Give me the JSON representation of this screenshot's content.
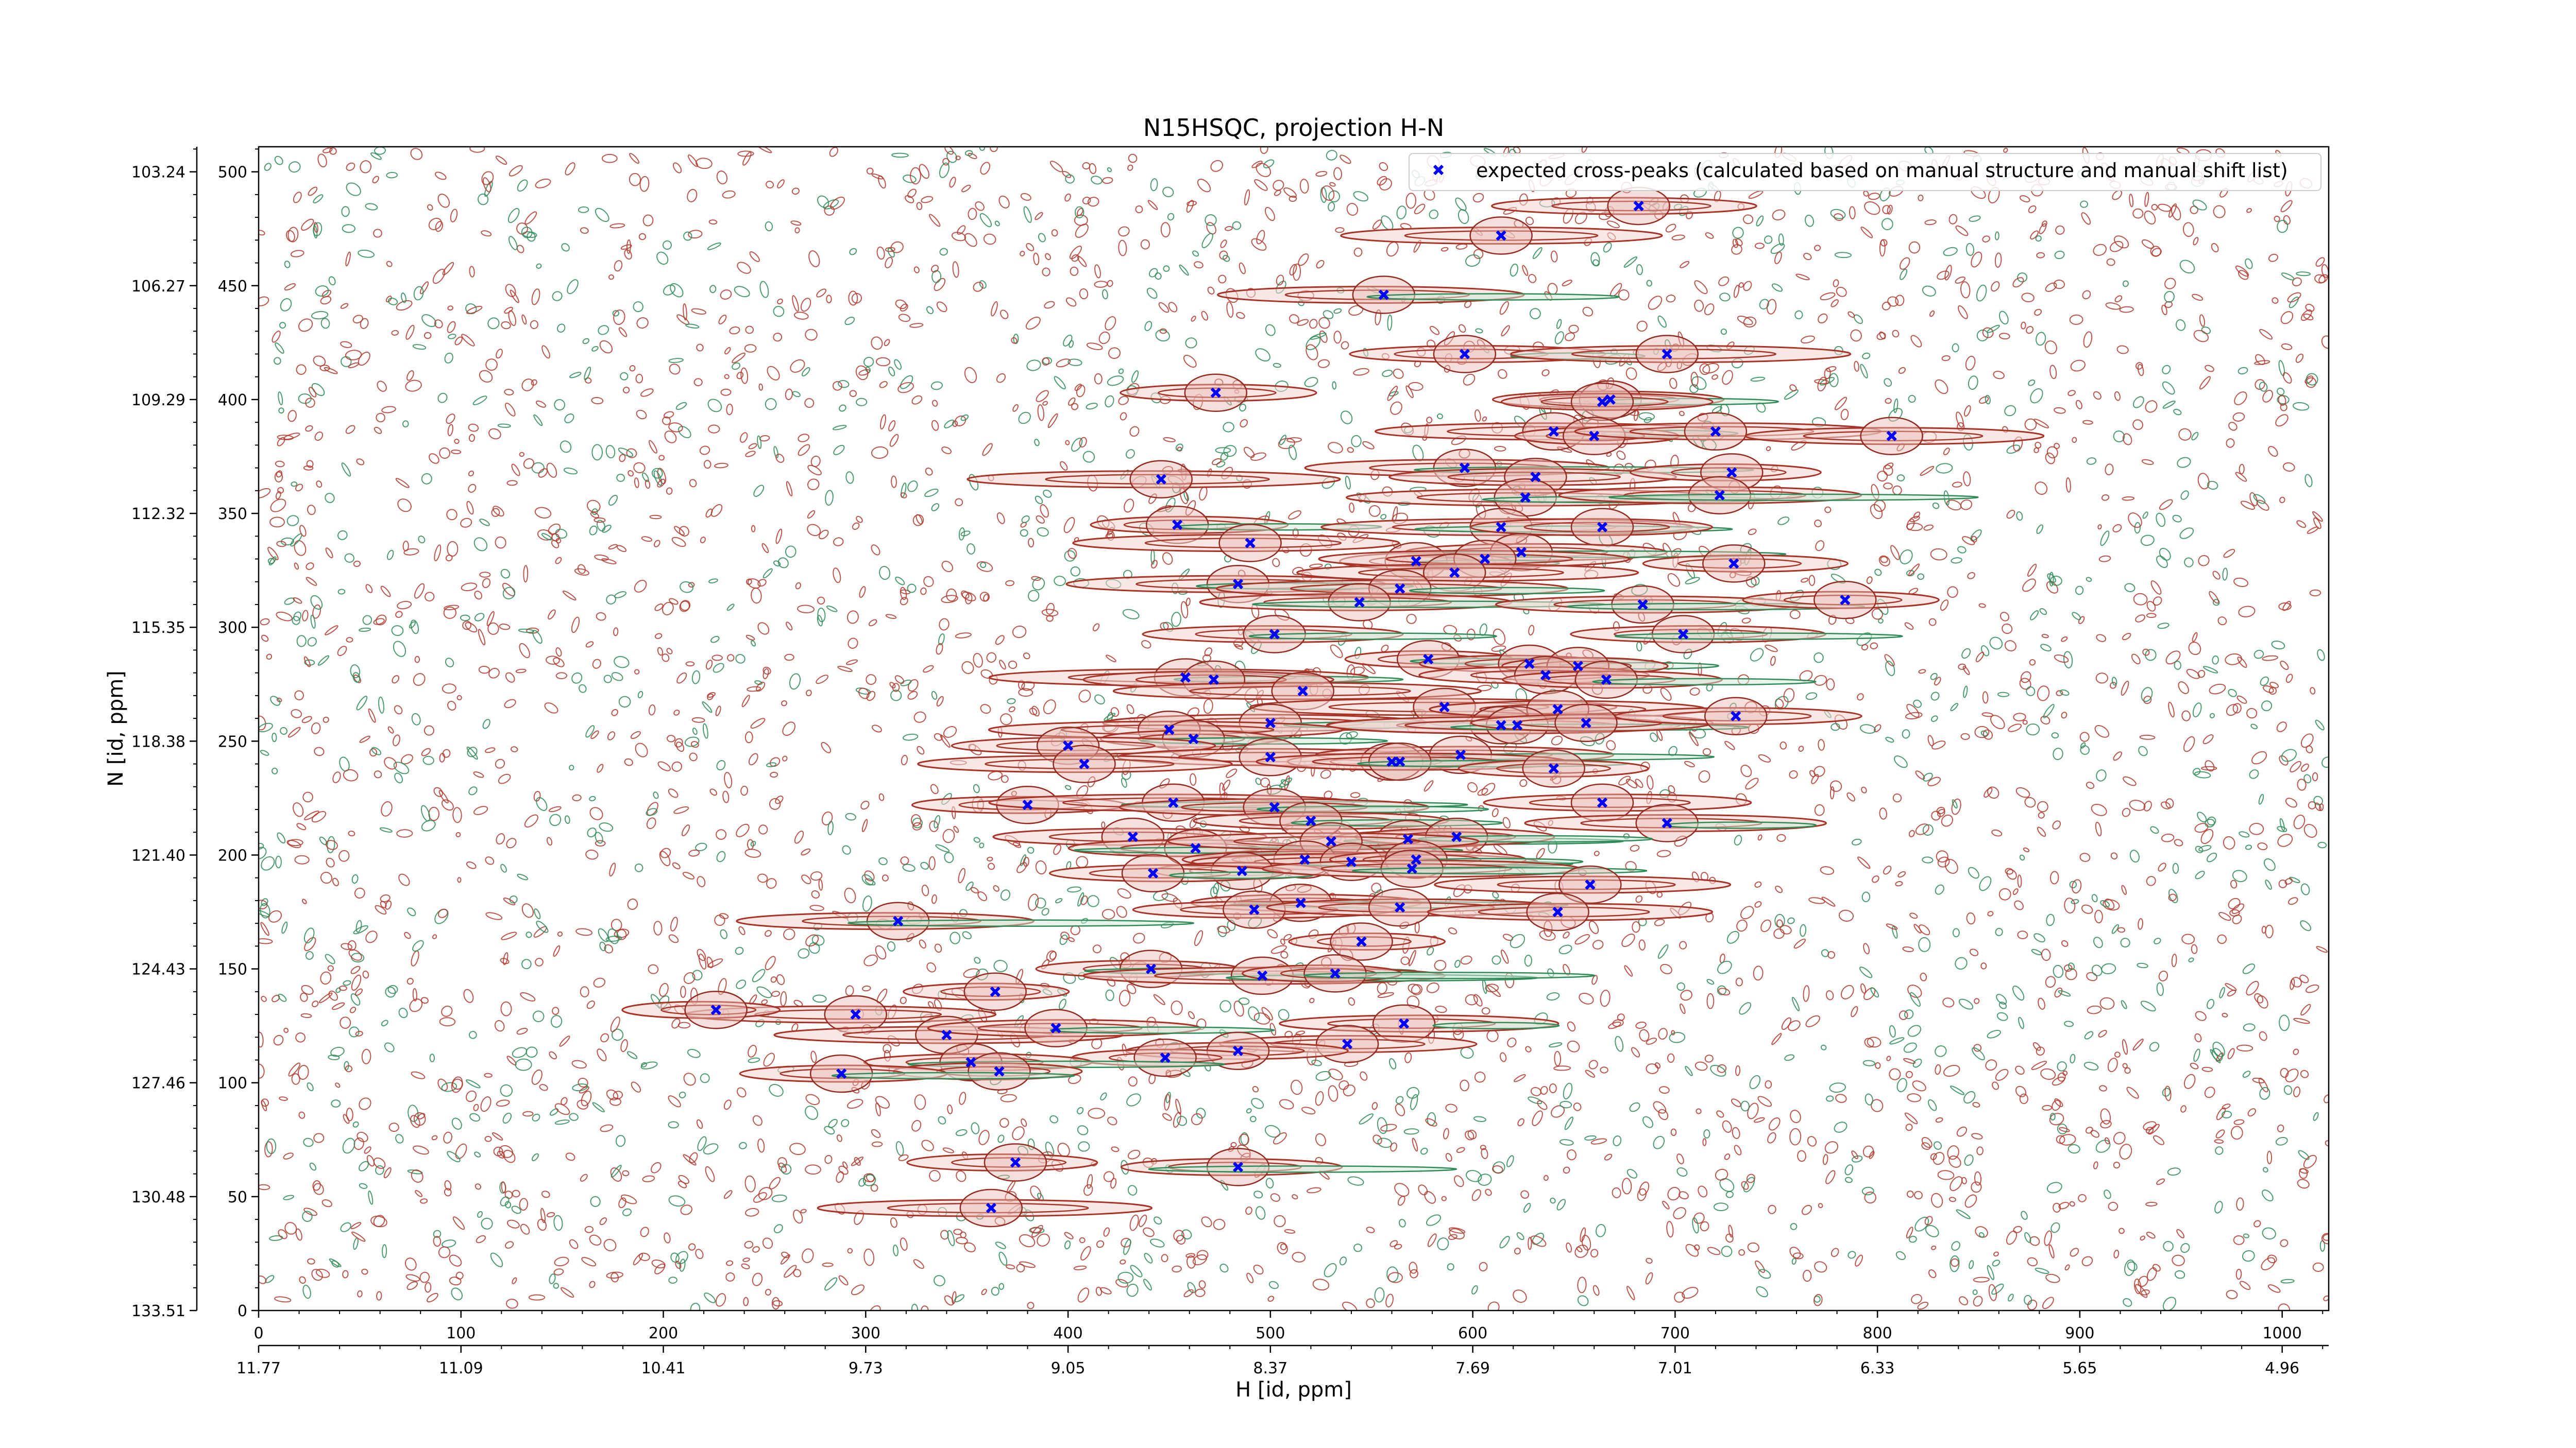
{
  "chart_data": {
    "type": "scatter",
    "title": "N15HSQC, projection H-N",
    "xlabel": "H [id, ppm]",
    "ylabel": "N [id, ppm]",
    "xlim": [
      0,
      1023
    ],
    "ylim": [
      0,
      511
    ],
    "x_ticks": [
      0,
      100,
      200,
      300,
      400,
      500,
      600,
      700,
      800,
      900,
      1000
    ],
    "y_ticks": [
      0,
      50,
      100,
      150,
      200,
      250,
      300,
      350,
      400,
      450,
      500
    ],
    "x_ppm_ticks": [
      "11.77",
      "11.09",
      "10.41",
      "9.73",
      "9.05",
      "8.37",
      "7.69",
      "7.01",
      "6.33",
      "5.65",
      "4.96"
    ],
    "y_ppm_ticks": [
      "133.51",
      "130.48",
      "127.46",
      "124.43",
      "121.40",
      "118.38",
      "115.35",
      "112.32",
      "109.29",
      "106.27",
      "103.24"
    ],
    "grid": false,
    "legend_position": "upper-right",
    "background": "overlapping contour map: positive contours dark red, negative contours green",
    "series": [
      {
        "name": "expected cross-peaks (calculated based on manual structure and manual shift list)",
        "marker": "x",
        "color": "#0000ff",
        "points": [
          [
            682,
            485
          ],
          [
            614,
            472
          ],
          [
            556,
            446
          ],
          [
            596,
            420
          ],
          [
            696,
            420
          ],
          [
            473,
            403
          ],
          [
            668,
            400
          ],
          [
            664,
            399
          ],
          [
            640,
            386
          ],
          [
            660,
            384
          ],
          [
            720,
            386
          ],
          [
            807,
            384
          ],
          [
            596,
            370
          ],
          [
            631,
            366
          ],
          [
            728,
            368
          ],
          [
            446,
            365
          ],
          [
            626,
            357
          ],
          [
            722,
            358
          ],
          [
            454,
            345
          ],
          [
            614,
            344
          ],
          [
            664,
            344
          ],
          [
            490,
            337
          ],
          [
            624,
            333
          ],
          [
            572,
            329
          ],
          [
            606,
            330
          ],
          [
            591,
            324
          ],
          [
            729,
            328
          ],
          [
            484,
            319
          ],
          [
            564,
            317
          ],
          [
            544,
            311
          ],
          [
            684,
            310
          ],
          [
            784,
            312
          ],
          [
            502,
            297
          ],
          [
            704,
            297
          ],
          [
            578,
            286
          ],
          [
            628,
            284
          ],
          [
            652,
            283
          ],
          [
            636,
            279
          ],
          [
            458,
            278
          ],
          [
            472,
            277
          ],
          [
            666,
            277
          ],
          [
            516,
            272
          ],
          [
            586,
            265
          ],
          [
            642,
            264
          ],
          [
            500,
            258
          ],
          [
            614,
            257
          ],
          [
            622,
            257
          ],
          [
            656,
            258
          ],
          [
            730,
            261
          ],
          [
            450,
            255
          ],
          [
            462,
            251
          ],
          [
            400,
            248
          ],
          [
            500,
            243
          ],
          [
            594,
            244
          ],
          [
            408,
            240
          ],
          [
            560,
            241
          ],
          [
            564,
            241
          ],
          [
            640,
            238
          ],
          [
            380,
            222
          ],
          [
            452,
            223
          ],
          [
            502,
            221
          ],
          [
            520,
            215
          ],
          [
            664,
            223
          ],
          [
            696,
            214
          ],
          [
            432,
            208
          ],
          [
            568,
            207
          ],
          [
            592,
            208
          ],
          [
            463,
            203
          ],
          [
            530,
            206
          ],
          [
            517,
            198
          ],
          [
            540,
            197
          ],
          [
            572,
            198
          ],
          [
            486,
            193
          ],
          [
            442,
            192
          ],
          [
            570,
            194
          ],
          [
            658,
            187
          ],
          [
            515,
            179
          ],
          [
            492,
            176
          ],
          [
            564,
            177
          ],
          [
            642,
            175
          ],
          [
            316,
            171
          ],
          [
            545,
            162
          ],
          [
            441,
            150
          ],
          [
            496,
            147
          ],
          [
            532,
            148
          ],
          [
            364,
            140
          ],
          [
            566,
            126
          ],
          [
            295,
            130
          ],
          [
            340,
            121
          ],
          [
            394,
            124
          ],
          [
            538,
            117
          ],
          [
            484,
            114
          ],
          [
            448,
            111
          ],
          [
            352,
            109
          ],
          [
            366,
            105
          ],
          [
            288,
            104
          ],
          [
            374,
            65
          ],
          [
            484,
            63
          ],
          [
            362,
            45
          ],
          [
            226,
            132
          ]
        ]
      }
    ]
  }
}
